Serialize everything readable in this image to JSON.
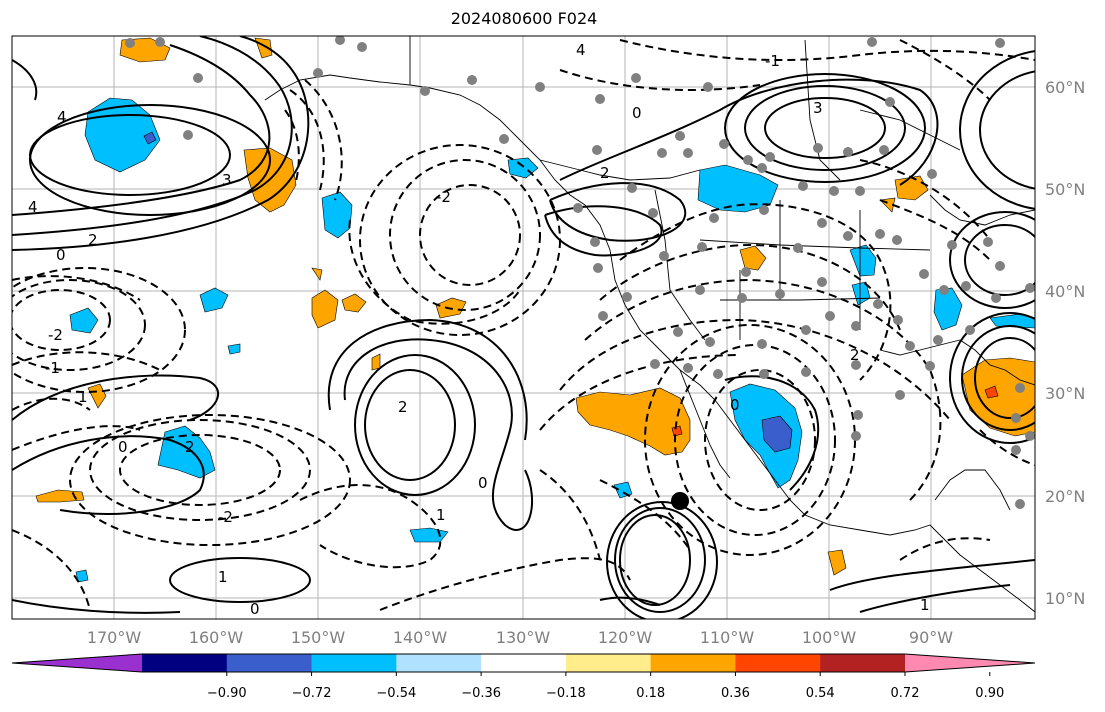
{
  "title": "2024080600 F024",
  "latitude_labels": [
    "60°N",
    "50°N",
    "40°N",
    "30°N",
    "20°N",
    "10°N"
  ],
  "longitude_labels": [
    "170°W",
    "160°W",
    "150°W",
    "140°W",
    "130°W",
    "120°W",
    "110°W",
    "100°W",
    "90°W"
  ],
  "colorbar": {
    "tick_labels": [
      "−0.90",
      "−0.72",
      "−0.54",
      "−0.36",
      "−0.18",
      "0.18",
      "0.36",
      "0.54",
      "0.72",
      "0.90"
    ],
    "colors": [
      "#9b30d0",
      "#000080",
      "#3a5fcd",
      "#00bfff",
      "#b0e2ff",
      "#ffffff",
      "#ffec8b",
      "#ffa500",
      "#ff4500",
      "#b22222",
      "#ff89b0"
    ]
  },
  "contour_labels": [
    "4",
    "2",
    "0",
    "-2",
    "-1",
    "3",
    "4",
    "1",
    "2",
    "0",
    "-2",
    "2",
    "0",
    "1",
    "-2",
    "1",
    "-1",
    "0",
    "0",
    "3",
    "4",
    "0",
    "2",
    "2",
    "1"
  ],
  "fill_colors": {
    "negative_light": "#00bfff",
    "negative_strong": "#3a5fcd",
    "positive_light": "#ffa500",
    "positive_strong": "#ff4500"
  }
}
